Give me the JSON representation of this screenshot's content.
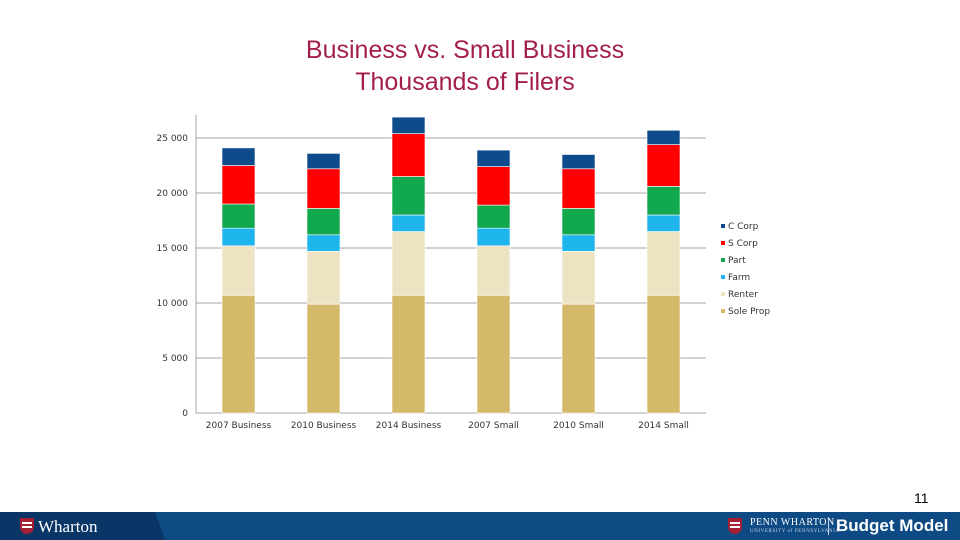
{
  "title_line1": "Business vs. Small Business",
  "title_line2": "Thousands of Filers",
  "page_number": "11",
  "footer": {
    "left_logo": "Wharton",
    "right_brand": "PENN WHARTON",
    "right_brand_sub": "UNIVERSITY of PENNSYLVANIA",
    "right_title": "Budget Model"
  },
  "chart_data": {
    "type": "bar",
    "stacked": true,
    "categories": [
      "2007 Business",
      "2010 Business",
      "2014 Business",
      "2007 Small",
      "2010 Small",
      "2014 Small"
    ],
    "series": [
      {
        "name": "Sole Prop",
        "color": "#d4b96a",
        "values": [
          10700,
          9900,
          10700,
          10700,
          9900,
          10700
        ]
      },
      {
        "name": "Renter",
        "color": "#ede3c3",
        "values": [
          4500,
          4800,
          5800,
          4500,
          4800,
          5800
        ]
      },
      {
        "name": "Farm",
        "color": "#1eb4ec",
        "values": [
          1600,
          1500,
          1500,
          1600,
          1500,
          1500
        ]
      },
      {
        "name": "Part",
        "color": "#12a84e",
        "values": [
          2200,
          2400,
          3500,
          2100,
          2400,
          2600
        ]
      },
      {
        "name": "S Corp",
        "color": "#ff0000",
        "values": [
          3500,
          3600,
          3900,
          3500,
          3600,
          3800
        ]
      },
      {
        "name": "C Corp",
        "color": "#0d4b8c",
        "values": [
          1600,
          1400,
          1500,
          1500,
          1300,
          1300
        ]
      }
    ],
    "legend_order": [
      "C Corp",
      "S Corp",
      "Part",
      "Farm",
      "Renter",
      "Sole Prop"
    ],
    "legend_position": "right",
    "ylim": [
      0,
      25000
    ],
    "yticks": [
      0,
      5000,
      10000,
      15000,
      20000,
      25000
    ],
    "ytick_labels": [
      "0",
      "5 000",
      "10 000",
      "15 000",
      "20 000",
      "25 000"
    ],
    "gridlines": true,
    "xlabel": "",
    "ylabel": ""
  }
}
